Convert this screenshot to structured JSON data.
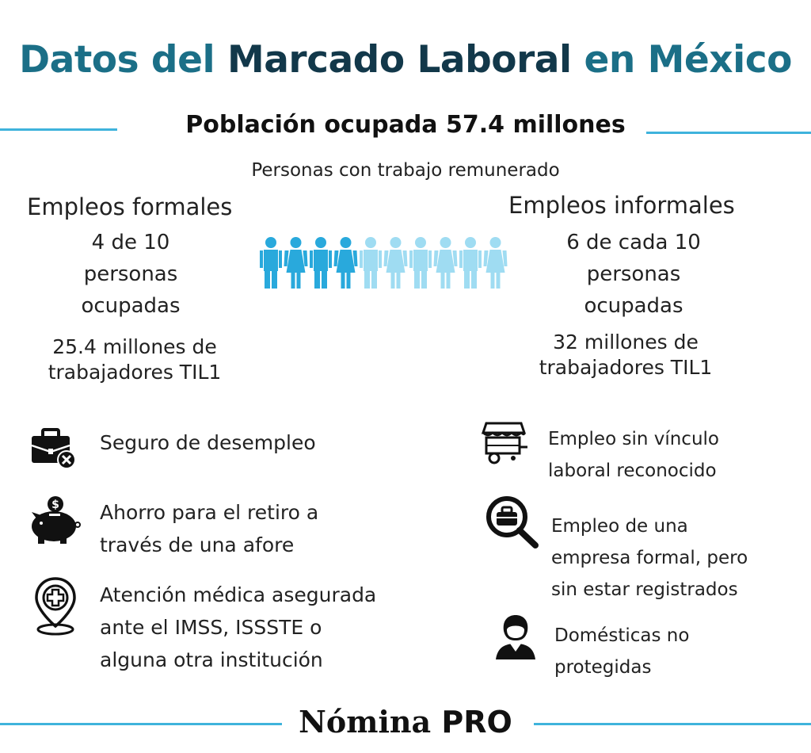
{
  "title": {
    "part1": "Datos del ",
    "part2": "Marcado Laboral",
    "part3": " en México"
  },
  "subtitle": "Población ocupada 57.4 millones",
  "subtitle2": "Personas con trabajo remunerado",
  "formal": {
    "heading": "Empleos formales",
    "ratio_lines": [
      "4 de 10",
      "personas",
      "ocupadas"
    ],
    "count_lines": [
      "25.4 millones de",
      "trabajadores TIL1"
    ],
    "benefits": [
      {
        "icon": "briefcase-x-icon",
        "lines": [
          "Seguro de desempleo"
        ]
      },
      {
        "icon": "piggy-bank-icon",
        "lines": [
          "Ahorro para el retiro a",
          "través de una afore"
        ]
      },
      {
        "icon": "medical-location-icon",
        "lines": [
          "Atención médica asegurada",
          "ante el IMSS, ISSSTE o",
          "alguna otra institución"
        ]
      }
    ]
  },
  "informal": {
    "heading": "Empleos informales",
    "ratio_lines": [
      "6 de cada 10",
      "personas",
      "ocupadas"
    ],
    "count_lines": [
      "32 millones de",
      "trabajadores TIL1"
    ],
    "types": [
      {
        "icon": "street-cart-icon",
        "lines": [
          "Empleo sin vínculo",
          "laboral reconocido"
        ]
      },
      {
        "icon": "search-briefcase-icon",
        "lines": [
          "Empleo de una",
          "empresa formal, pero",
          "sin estar  registrados"
        ]
      },
      {
        "icon": "domestic-worker-icon",
        "lines": [
          "Domésticas no",
          "protegidas"
        ]
      }
    ]
  },
  "people_graphic": {
    "total": 10,
    "formal": 4,
    "formal_color": "#29a9dc",
    "informal_color": "#9fdcf2"
  },
  "brand": {
    "part1": "Nómina",
    "part2": " PRO"
  },
  "colors": {
    "title_teal": "#1b6f87",
    "title_dark": "#12384a",
    "rule": "#3fb3dc"
  }
}
